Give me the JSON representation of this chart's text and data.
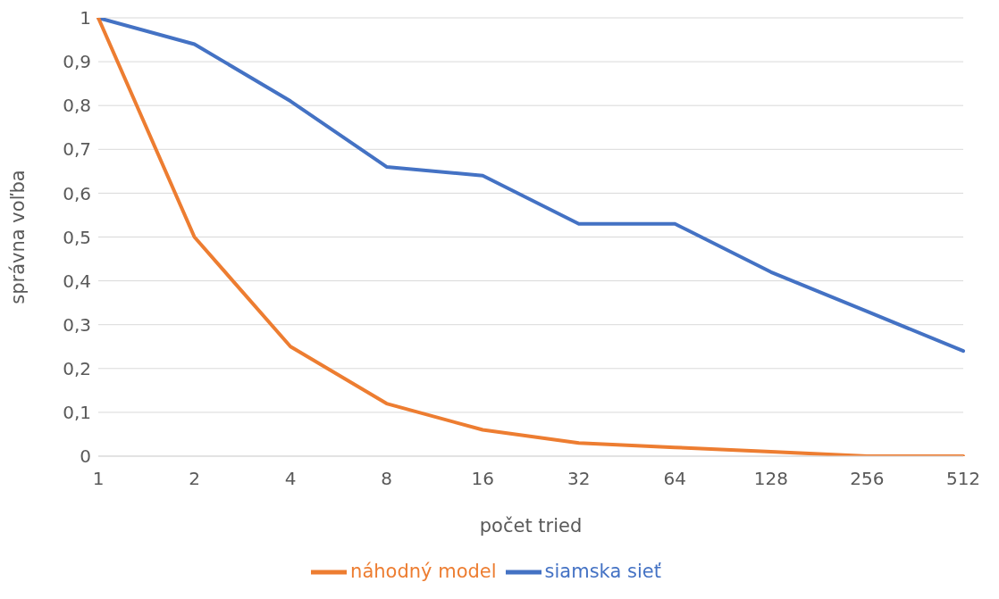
{
  "chart_data": {
    "type": "line",
    "xlabel": "počet tried",
    "ylabel": "správna voľba",
    "categories": [
      "1",
      "2",
      "4",
      "8",
      "16",
      "32",
      "64",
      "128",
      "256",
      "512"
    ],
    "series": [
      {
        "name": "siamska sieť",
        "color": "#4472c4",
        "values": [
          1,
          0.94,
          0.81,
          0.66,
          0.64,
          0.53,
          0.53,
          0.42,
          0.33,
          0.24
        ]
      },
      {
        "name": "náhodný model",
        "color": "#ed7d31",
        "values": [
          1,
          0.5,
          0.25,
          0.12,
          0.06,
          0.03,
          0.02,
          0.01,
          0,
          0
        ]
      }
    ],
    "ylim": [
      0,
      1
    ],
    "yticks": [
      0,
      {
        "value": 0.1,
        "label": "0,1"
      },
      {
        "value": 0.2,
        "label": "0,2"
      },
      {
        "value": 0.3,
        "label": "0,3"
      },
      {
        "value": 0.4,
        "label": "0,4"
      },
      {
        "value": 0.5,
        "label": "0,5"
      },
      {
        "value": 0.6,
        "label": "0,6"
      },
      {
        "value": 0.7,
        "label": "0,7"
      },
      {
        "value": 0.8,
        "label": "0,8"
      },
      {
        "value": 0.9,
        "label": "0,9"
      },
      1
    ],
    "grid": "y",
    "legend": "bottom",
    "marker": "none",
    "line_style": "solid"
  }
}
